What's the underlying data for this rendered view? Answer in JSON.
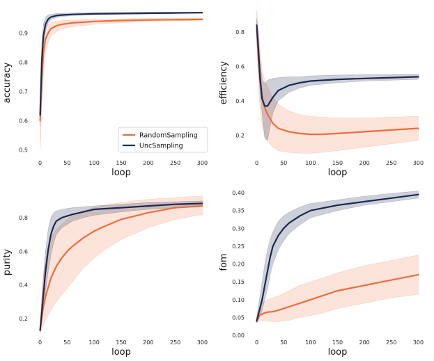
{
  "chart_data": [
    {
      "type": "line",
      "panel": "top-left",
      "xlabel": "loop",
      "ylabel": "accuracy",
      "xlim": [
        -2,
        302
      ],
      "ylim": [
        0.48,
        0.98
      ],
      "xticks": [
        0,
        50,
        100,
        150,
        200,
        250,
        300
      ],
      "yticks": [
        0.5,
        0.6,
        0.7,
        0.8,
        0.9
      ],
      "ytick_labels": [
        "0.5",
        "0.6",
        "0.7",
        "0.8",
        "0.9"
      ],
      "legend": {
        "position": "lower-right",
        "entries": [
          "RandomSampling",
          "UncSampling"
        ]
      },
      "series": [
        {
          "name": "RandomSampling",
          "color": "#f26b38",
          "x": [
            0,
            3,
            6,
            10,
            15,
            20,
            30,
            40,
            60,
            100,
            150,
            200,
            250,
            300
          ],
          "mean": [
            0.6,
            0.73,
            0.83,
            0.88,
            0.9,
            0.915,
            0.925,
            0.93,
            0.935,
            0.94,
            0.943,
            0.945,
            0.946,
            0.947
          ],
          "lower": [
            0.5,
            0.63,
            0.76,
            0.83,
            0.87,
            0.89,
            0.905,
            0.915,
            0.922,
            0.93,
            0.936,
            0.94,
            0.942,
            0.943
          ],
          "upper": [
            0.65,
            0.8,
            0.89,
            0.92,
            0.93,
            0.935,
            0.94,
            0.943,
            0.945,
            0.947,
            0.949,
            0.95,
            0.951,
            0.951
          ]
        },
        {
          "name": "UncSampling",
          "color": "#1a2a52",
          "x": [
            0,
            3,
            6,
            10,
            15,
            20,
            30,
            40,
            60,
            100,
            150,
            200,
            250,
            300
          ],
          "mean": [
            0.62,
            0.8,
            0.89,
            0.93,
            0.948,
            0.955,
            0.96,
            0.962,
            0.964,
            0.966,
            0.967,
            0.968,
            0.969,
            0.97
          ],
          "lower": [
            0.58,
            0.75,
            0.86,
            0.91,
            0.935,
            0.946,
            0.953,
            0.957,
            0.96,
            0.963,
            0.965,
            0.966,
            0.967,
            0.968
          ],
          "upper": [
            0.66,
            0.86,
            0.93,
            0.955,
            0.962,
            0.965,
            0.967,
            0.968,
            0.969,
            0.97,
            0.971,
            0.972,
            0.972,
            0.972
          ]
        }
      ]
    },
    {
      "type": "line",
      "panel": "top-right",
      "xlabel": "loop",
      "ylabel": "efficiency",
      "xlim": [
        -2,
        302
      ],
      "ylim": [
        0.08,
        0.93
      ],
      "xticks": [
        0,
        50,
        100,
        150,
        200,
        250,
        300
      ],
      "yticks": [
        0.2,
        0.4,
        0.6,
        0.8
      ],
      "ytick_labels": [
        "0.2",
        "0.4",
        "0.6",
        "0.8"
      ],
      "series": [
        {
          "name": "RandomSampling",
          "color": "#f26b38",
          "x": [
            0,
            3,
            6,
            10,
            15,
            20,
            30,
            40,
            60,
            80,
            100,
            120,
            150,
            200,
            250,
            300
          ],
          "mean": [
            0.82,
            0.65,
            0.52,
            0.42,
            0.36,
            0.32,
            0.27,
            0.24,
            0.22,
            0.21,
            0.205,
            0.205,
            0.21,
            0.22,
            0.23,
            0.24
          ],
          "lower": [
            0.75,
            0.5,
            0.36,
            0.26,
            0.2,
            0.17,
            0.13,
            0.11,
            0.1,
            0.095,
            0.095,
            0.1,
            0.11,
            0.13,
            0.15,
            0.17
          ],
          "upper": [
            0.93,
            0.82,
            0.7,
            0.58,
            0.52,
            0.48,
            0.42,
            0.38,
            0.34,
            0.32,
            0.31,
            0.305,
            0.3,
            0.3,
            0.305,
            0.31
          ]
        },
        {
          "name": "UncSampling",
          "color": "#1a2a52",
          "x": [
            0,
            3,
            6,
            10,
            15,
            20,
            30,
            40,
            60,
            80,
            100,
            150,
            200,
            250,
            300
          ],
          "mean": [
            0.84,
            0.7,
            0.54,
            0.41,
            0.37,
            0.37,
            0.42,
            0.46,
            0.49,
            0.505,
            0.515,
            0.525,
            0.53,
            0.535,
            0.54
          ],
          "lower": [
            0.8,
            0.62,
            0.45,
            0.33,
            0.18,
            0.17,
            0.33,
            0.4,
            0.45,
            0.475,
            0.49,
            0.505,
            0.515,
            0.52,
            0.525
          ],
          "upper": [
            0.88,
            0.78,
            0.64,
            0.52,
            0.5,
            0.52,
            0.53,
            0.535,
            0.54,
            0.54,
            0.545,
            0.55,
            0.552,
            0.553,
            0.555
          ]
        }
      ]
    },
    {
      "type": "line",
      "panel": "bottom-left",
      "xlabel": "loop",
      "ylabel": "purity",
      "xlim": [
        -2,
        302
      ],
      "ylim": [
        0.1,
        0.97
      ],
      "xticks": [
        0,
        50,
        100,
        150,
        200,
        250,
        300
      ],
      "yticks": [
        0.2,
        0.4,
        0.6,
        0.8
      ],
      "ytick_labels": [
        "0.2",
        "0.4",
        "0.6",
        "0.8"
      ],
      "series": [
        {
          "name": "RandomSampling",
          "color": "#f26b38",
          "x": [
            0,
            5,
            10,
            20,
            30,
            40,
            50,
            60,
            80,
            100,
            120,
            150,
            200,
            250,
            300
          ],
          "mean": [
            0.13,
            0.25,
            0.33,
            0.44,
            0.51,
            0.56,
            0.6,
            0.63,
            0.68,
            0.72,
            0.75,
            0.79,
            0.83,
            0.86,
            0.87
          ],
          "lower": [
            0.11,
            0.15,
            0.19,
            0.25,
            0.3,
            0.34,
            0.38,
            0.42,
            0.5,
            0.56,
            0.61,
            0.67,
            0.74,
            0.79,
            0.82
          ],
          "upper": [
            0.18,
            0.42,
            0.56,
            0.68,
            0.73,
            0.76,
            0.79,
            0.81,
            0.84,
            0.86,
            0.875,
            0.89,
            0.91,
            0.92,
            0.93
          ]
        },
        {
          "name": "UncSampling",
          "color": "#1a2a52",
          "x": [
            0,
            5,
            10,
            15,
            20,
            25,
            30,
            40,
            50,
            60,
            80,
            100,
            150,
            200,
            250,
            300
          ],
          "mean": [
            0.13,
            0.3,
            0.48,
            0.61,
            0.7,
            0.75,
            0.78,
            0.8,
            0.81,
            0.82,
            0.835,
            0.85,
            0.86,
            0.87,
            0.88,
            0.885
          ],
          "lower": [
            0.12,
            0.22,
            0.36,
            0.48,
            0.58,
            0.65,
            0.7,
            0.74,
            0.76,
            0.78,
            0.8,
            0.815,
            0.835,
            0.85,
            0.86,
            0.87
          ],
          "upper": [
            0.15,
            0.4,
            0.6,
            0.73,
            0.8,
            0.83,
            0.84,
            0.85,
            0.855,
            0.86,
            0.865,
            0.87,
            0.88,
            0.89,
            0.895,
            0.9
          ]
        }
      ]
    },
    {
      "type": "line",
      "panel": "bottom-right",
      "xlabel": "loop",
      "ylabel": "fom",
      "xlim": [
        -2,
        302
      ],
      "ylim": [
        0.0,
        0.41
      ],
      "xticks": [
        0,
        50,
        100,
        150,
        200,
        250,
        300
      ],
      "yticks": [
        0.0,
        0.05,
        0.1,
        0.15,
        0.2,
        0.25,
        0.3,
        0.35,
        0.4
      ],
      "ytick_labels": [
        "0.00",
        "0.05",
        "0.10",
        "0.15",
        "0.20",
        "0.25",
        "0.30",
        "0.35",
        "0.40"
      ],
      "series": [
        {
          "name": "RandomSampling",
          "color": "#f26b38",
          "x": [
            0,
            5,
            10,
            20,
            30,
            40,
            50,
            60,
            80,
            100,
            120,
            150,
            200,
            250,
            300
          ],
          "mean": [
            0.04,
            0.055,
            0.06,
            0.065,
            0.066,
            0.07,
            0.075,
            0.08,
            0.09,
            0.1,
            0.11,
            0.125,
            0.14,
            0.155,
            0.17
          ],
          "lower": [
            0.035,
            0.04,
            0.042,
            0.04,
            0.038,
            0.038,
            0.04,
            0.042,
            0.05,
            0.055,
            0.062,
            0.075,
            0.09,
            0.105,
            0.115
          ],
          "upper": [
            0.05,
            0.08,
            0.09,
            0.1,
            0.105,
            0.11,
            0.118,
            0.125,
            0.14,
            0.15,
            0.16,
            0.175,
            0.195,
            0.21,
            0.225
          ]
        },
        {
          "name": "UncSampling",
          "color": "#1a2a52",
          "x": [
            0,
            5,
            10,
            15,
            20,
            25,
            30,
            40,
            50,
            60,
            80,
            100,
            150,
            200,
            250,
            300
          ],
          "mean": [
            0.04,
            0.07,
            0.1,
            0.14,
            0.18,
            0.22,
            0.25,
            0.28,
            0.3,
            0.315,
            0.335,
            0.35,
            0.365,
            0.375,
            0.385,
            0.395
          ],
          "lower": [
            0.035,
            0.05,
            0.07,
            0.1,
            0.13,
            0.17,
            0.2,
            0.24,
            0.265,
            0.285,
            0.31,
            0.33,
            0.35,
            0.365,
            0.375,
            0.385
          ],
          "upper": [
            0.05,
            0.1,
            0.15,
            0.2,
            0.24,
            0.27,
            0.29,
            0.32,
            0.335,
            0.345,
            0.36,
            0.37,
            0.38,
            0.39,
            0.398,
            0.405
          ]
        }
      ]
    }
  ]
}
